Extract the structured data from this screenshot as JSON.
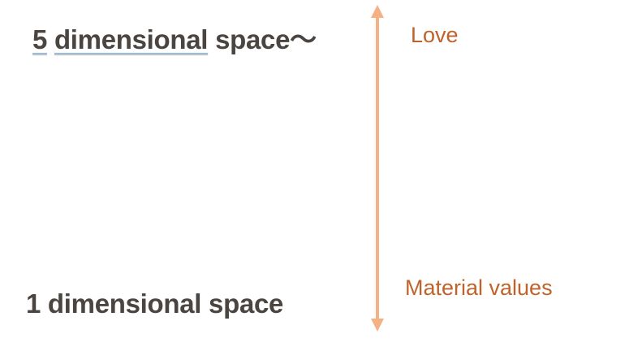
{
  "top": {
    "number": "5",
    "word1": "dimensional",
    "word2": "space",
    "suffix": "〜"
  },
  "bottom": {
    "label": "1 dimensional space"
  },
  "scale": {
    "top_label": "Love",
    "bottom_label": "Material values"
  },
  "colors": {
    "main_text": "#4a4540",
    "side_text": "#c0622a",
    "arrow": "#f4b183",
    "underline": "#7a9cc8"
  }
}
